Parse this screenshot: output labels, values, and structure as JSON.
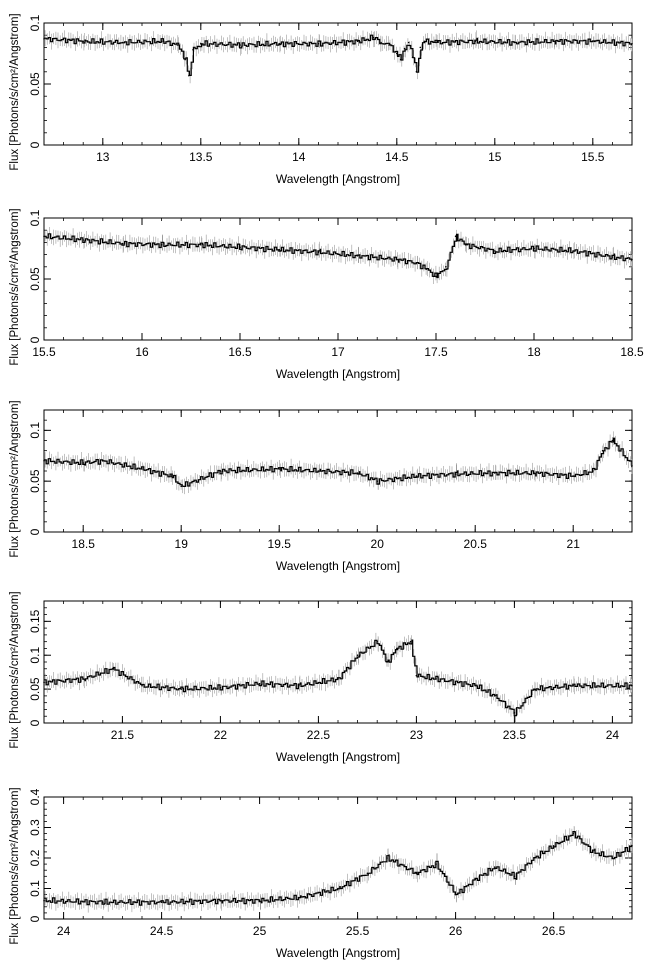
{
  "chart_data": [
    {
      "type": "line",
      "xlabel": "Wavelength [Angstrom]",
      "ylabel": "Flux [Photons/s/cm²/Angstrom]",
      "xlim": [
        12.7,
        15.7
      ],
      "ylim": [
        0,
        0.1
      ],
      "xticks": [
        13,
        13.5,
        14,
        14.5,
        15,
        15.5
      ],
      "xtick_labels": [
        "13",
        "13.5",
        "14",
        "14.5",
        "15",
        "15.5"
      ],
      "yticks": [
        0,
        0.05,
        0.1
      ],
      "ytick_labels": [
        "0",
        "0.05",
        "0.1"
      ],
      "grid": false,
      "series": [
        {
          "x": [
            12.7,
            12.9,
            13.1,
            13.3,
            13.38,
            13.42,
            13.44,
            13.46,
            13.5,
            13.7,
            13.9,
            14.1,
            14.3,
            14.38,
            14.42,
            14.46,
            14.5,
            14.52,
            14.54,
            14.56,
            14.58,
            14.6,
            14.62,
            14.64,
            14.7,
            14.9,
            15.1,
            15.3,
            15.5,
            15.7
          ],
          "y": [
            0.087,
            0.085,
            0.084,
            0.085,
            0.082,
            0.07,
            0.057,
            0.078,
            0.083,
            0.082,
            0.083,
            0.083,
            0.085,
            0.088,
            0.084,
            0.082,
            0.075,
            0.07,
            0.079,
            0.084,
            0.072,
            0.06,
            0.08,
            0.085,
            0.084,
            0.085,
            0.084,
            0.085,
            0.085,
            0.083
          ]
        }
      ]
    },
    {
      "type": "line",
      "xlabel": "Wavelength [Angstrom]",
      "ylabel": "Flux [Photons/s/cm²/Angstrom]",
      "xlim": [
        15.5,
        18.5
      ],
      "ylim": [
        0,
        0.1
      ],
      "xticks": [
        15.5,
        16,
        16.5,
        17,
        17.5,
        18,
        18.5
      ],
      "xtick_labels": [
        "15.5",
        "16",
        "16.5",
        "17",
        "17.5",
        "18",
        "18.5"
      ],
      "yticks": [
        0,
        0.05,
        0.1
      ],
      "ytick_labels": [
        "0",
        "0.05",
        "0.1"
      ],
      "grid": false,
      "series": [
        {
          "x": [
            15.5,
            15.7,
            15.9,
            16.1,
            16.3,
            16.5,
            16.7,
            16.9,
            17.1,
            17.3,
            17.4,
            17.45,
            17.5,
            17.55,
            17.6,
            17.65,
            17.8,
            18.0,
            18.2,
            18.4,
            18.5
          ],
          "y": [
            0.085,
            0.082,
            0.079,
            0.078,
            0.078,
            0.076,
            0.074,
            0.072,
            0.069,
            0.066,
            0.063,
            0.058,
            0.052,
            0.06,
            0.085,
            0.078,
            0.073,
            0.075,
            0.073,
            0.068,
            0.066
          ]
        }
      ]
    },
    {
      "type": "line",
      "xlabel": "Wavelength [Angstrom]",
      "ylabel": "Flux [Photons/s/cm²/Angstrom]",
      "xlim": [
        18.3,
        21.3
      ],
      "ylim": [
        0,
        0.12
      ],
      "xticks": [
        18.5,
        19,
        19.5,
        20,
        20.5,
        21
      ],
      "xtick_labels": [
        "18.5",
        "19",
        "19.5",
        "20",
        "20.5",
        "21"
      ],
      "yticks": [
        0,
        0.05,
        0.1
      ],
      "ytick_labels": [
        "0",
        "0.05",
        "0.1"
      ],
      "grid": false,
      "series": [
        {
          "x": [
            18.3,
            18.5,
            18.6,
            18.8,
            18.95,
            19.0,
            19.2,
            19.5,
            19.7,
            19.9,
            20.0,
            20.2,
            20.4,
            20.6,
            20.8,
            21.0,
            21.1,
            21.15,
            21.2,
            21.3
          ],
          "y": [
            0.07,
            0.068,
            0.07,
            0.062,
            0.055,
            0.045,
            0.06,
            0.062,
            0.06,
            0.058,
            0.05,
            0.055,
            0.057,
            0.058,
            0.058,
            0.055,
            0.06,
            0.08,
            0.09,
            0.065
          ]
        }
      ]
    },
    {
      "type": "line",
      "xlabel": "Wavelength [Angstrom]",
      "ylabel": "Flux [Photons/s/cm²/Angstrom]",
      "xlim": [
        21.1,
        24.1
      ],
      "ylim": [
        0,
        0.18
      ],
      "xticks": [
        21.5,
        22,
        22.5,
        23,
        23.5,
        24
      ],
      "xtick_labels": [
        "21.5",
        "22",
        "22.5",
        "23",
        "23.5",
        "24"
      ],
      "yticks": [
        0,
        0.05,
        0.1,
        0.15
      ],
      "ytick_labels": [
        "0",
        "0.05",
        "0.1",
        "0.15"
      ],
      "grid": false,
      "series": [
        {
          "x": [
            21.1,
            21.3,
            21.45,
            21.6,
            21.8,
            22.0,
            22.2,
            22.4,
            22.6,
            22.7,
            22.8,
            22.85,
            22.9,
            22.97,
            23.0,
            23.1,
            23.3,
            23.4,
            23.5,
            23.6,
            23.8,
            24.1
          ],
          "y": [
            0.06,
            0.065,
            0.08,
            0.055,
            0.05,
            0.052,
            0.058,
            0.055,
            0.065,
            0.1,
            0.12,
            0.09,
            0.11,
            0.12,
            0.07,
            0.065,
            0.055,
            0.04,
            0.015,
            0.05,
            0.055,
            0.055
          ]
        }
      ]
    },
    {
      "type": "line",
      "xlabel": "Wavelength [Angstrom]",
      "ylabel": "Flux [Photons/s/cm²/Angstrom]",
      "xlim": [
        23.9,
        26.9
      ],
      "ylim": [
        0,
        0.4
      ],
      "xticks": [
        24,
        24.5,
        25,
        25.5,
        26,
        26.5
      ],
      "xtick_labels": [
        "24",
        "24.5",
        "25",
        "25.5",
        "26",
        "26.5"
      ],
      "yticks": [
        0,
        0.1,
        0.2,
        0.3,
        0.4
      ],
      "ytick_labels": [
        "0",
        "0.1",
        "0.2",
        "0.3",
        "0.4"
      ],
      "grid": false,
      "series": [
        {
          "x": [
            23.9,
            24.2,
            24.5,
            24.8,
            25.0,
            25.2,
            25.4,
            25.55,
            25.65,
            25.8,
            25.9,
            26.0,
            26.1,
            26.2,
            26.3,
            26.4,
            26.5,
            26.6,
            26.7,
            26.8,
            26.9
          ],
          "y": [
            0.06,
            0.055,
            0.055,
            0.06,
            0.06,
            0.07,
            0.1,
            0.15,
            0.2,
            0.15,
            0.18,
            0.08,
            0.13,
            0.17,
            0.14,
            0.2,
            0.24,
            0.28,
            0.22,
            0.2,
            0.24
          ]
        }
      ]
    }
  ]
}
